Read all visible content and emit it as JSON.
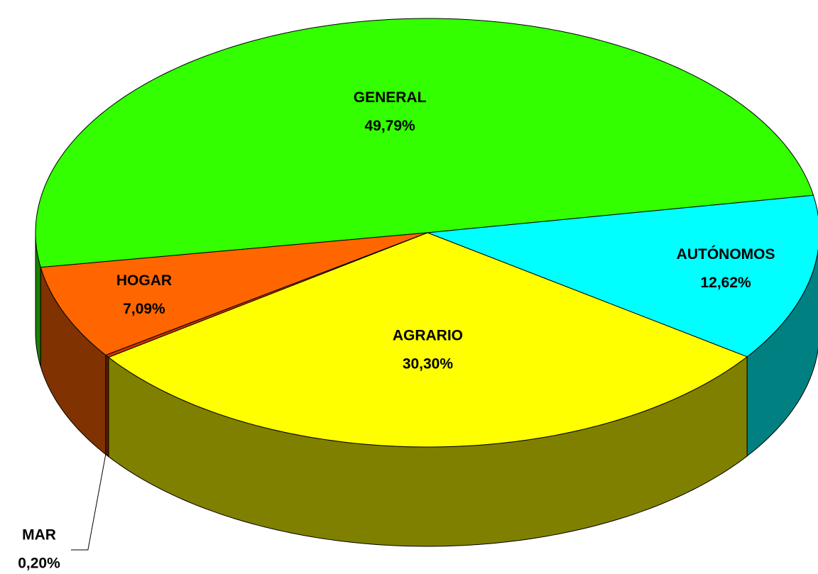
{
  "chart_data": {
    "type": "pie",
    "categories": [
      "GENERAL",
      "AUTÓNOMOS",
      "AGRARIO",
      "MAR",
      "HOGAR"
    ],
    "values": [
      49.79,
      12.62,
      30.3,
      0.2,
      7.09
    ],
    "value_labels": [
      "49,79%",
      "12,62%",
      "30,30%",
      "0,20%",
      "7,09%"
    ],
    "colors": [
      "#33ff00",
      "#00ffff",
      "#ffff00",
      "#cc3300",
      "#ff6600"
    ]
  }
}
